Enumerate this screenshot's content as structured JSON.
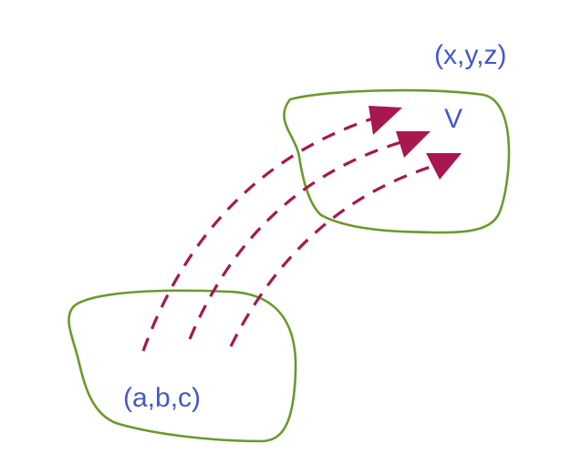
{
  "labels": {
    "source_point": "(a,b,c)",
    "target_point": "(x,y,z)",
    "target_region": "V"
  },
  "colors": {
    "region_outline": "#6a9a2a",
    "arrow": "#a8174f",
    "label_text": "#4358c8"
  },
  "arrow_count": 3
}
